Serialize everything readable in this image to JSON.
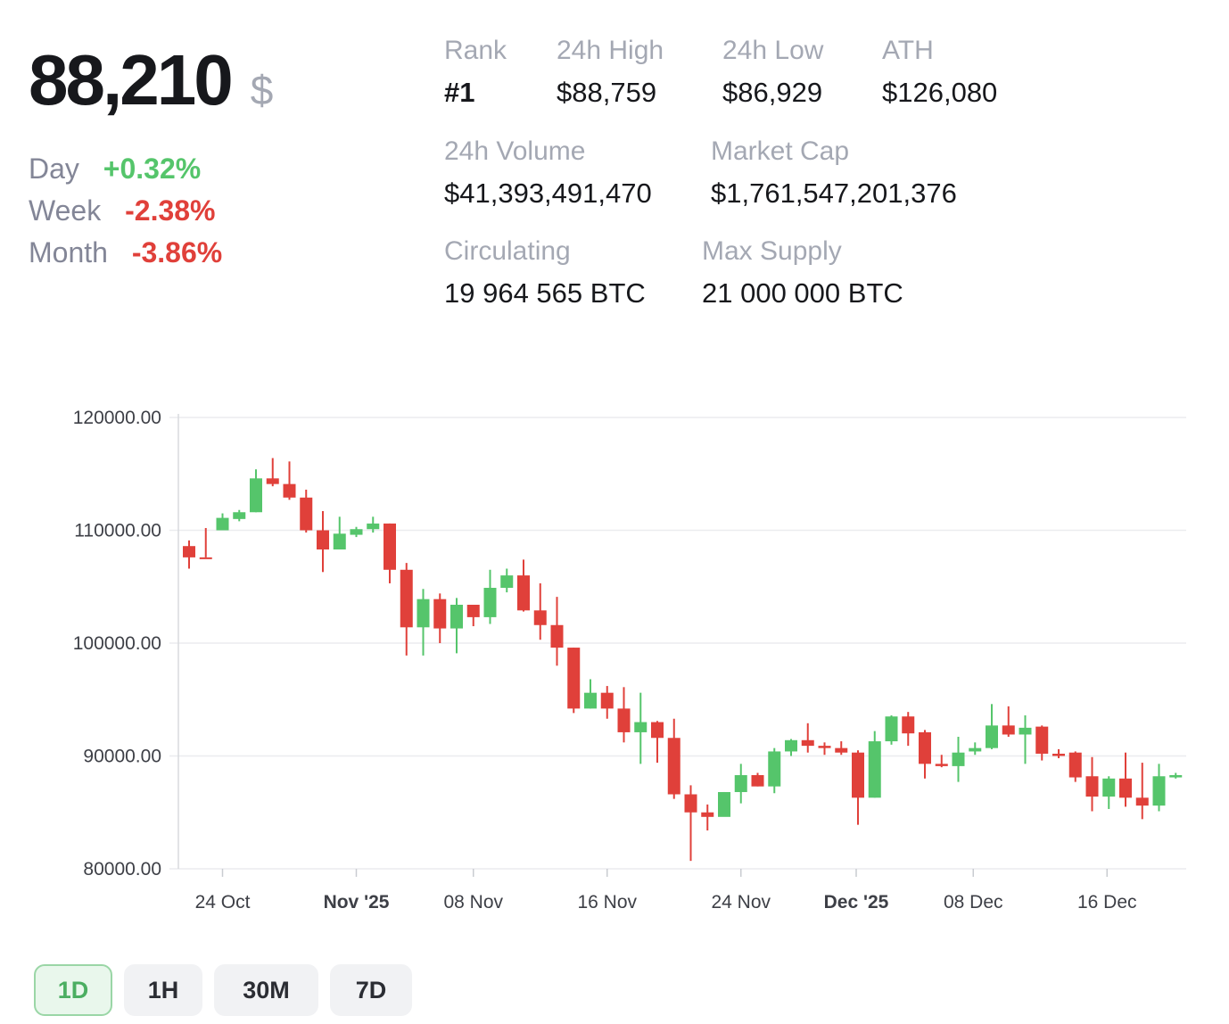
{
  "price": {
    "value": "88,210",
    "currency": "$"
  },
  "changes": [
    {
      "label": "Day",
      "value": "+0.32%",
      "dir": "pos"
    },
    {
      "label": "Week",
      "value": "-2.38%",
      "dir": "neg"
    },
    {
      "label": "Month",
      "value": "-3.86%",
      "dir": "neg"
    }
  ],
  "stats": {
    "rank": {
      "label": "Rank",
      "value": "#1"
    },
    "high24": {
      "label": "24h High",
      "value": "$88,759"
    },
    "low24": {
      "label": "24h Low",
      "value": "$86,929"
    },
    "ath": {
      "label": "ATH",
      "value": "$126,080"
    },
    "volume": {
      "label": "24h Volume",
      "value": "$41,393,491,470"
    },
    "marketcap": {
      "label": "Market Cap",
      "value": "$1,761,547,201,376"
    },
    "circulating": {
      "label": "Circulating",
      "value": "19 964 565 BTC"
    },
    "maxsupply": {
      "label": "Max Supply",
      "value": "21 000 000 BTC"
    }
  },
  "colors": {
    "up": "#55c56b",
    "down": "#e0403a",
    "grid": "#ebecef"
  },
  "tabs": [
    {
      "label": "1D",
      "active": true
    },
    {
      "label": "1H",
      "active": false
    },
    {
      "label": "30M",
      "active": false
    },
    {
      "label": "7D",
      "active": false
    }
  ],
  "chart_data": {
    "type": "candlestick",
    "ylim": [
      80000,
      120000
    ],
    "yticks": [
      "120000.00",
      "110000.00",
      "100000.00",
      "90000.00",
      "80000.00"
    ],
    "xticks": [
      {
        "label": "24 Oct",
        "index": 2,
        "bold": false
      },
      {
        "label": "Nov '25",
        "index": 10,
        "bold": true
      },
      {
        "label": "08 Nov",
        "index": 17,
        "bold": false
      },
      {
        "label": "16 Nov",
        "index": 25,
        "bold": false
      },
      {
        "label": "24 Nov",
        "index": 33,
        "bold": false
      },
      {
        "label": "Dec '25",
        "index": 40,
        "bold": true
      },
      {
        "label": "08 Dec",
        "index": 47,
        "bold": false
      },
      {
        "label": "16 Dec",
        "index": 55,
        "bold": false
      }
    ],
    "candles": [
      [
        108600,
        109100,
        107600,
        106600
      ],
      [
        107600,
        110200,
        107500,
        107600
      ],
      [
        110000,
        111500,
        111100,
        110000
      ],
      [
        111000,
        111800,
        111600,
        110800
      ],
      [
        111600,
        115400,
        114600,
        111600
      ],
      [
        114600,
        116400,
        114100,
        113900
      ],
      [
        114100,
        116100,
        112900,
        112700
      ],
      [
        112900,
        113600,
        110000,
        109800
      ],
      [
        110000,
        111700,
        108300,
        106300
      ],
      [
        108300,
        111200,
        109700,
        108300
      ],
      [
        109600,
        110300,
        110100,
        109400
      ],
      [
        110100,
        111200,
        110600,
        109800
      ],
      [
        110600,
        110600,
        106500,
        105300
      ],
      [
        106500,
        107100,
        101400,
        98900
      ],
      [
        101400,
        104800,
        103900,
        98900
      ],
      [
        103900,
        104400,
        101300,
        100000
      ],
      [
        101300,
        104000,
        103400,
        99100
      ],
      [
        103400,
        103400,
        102300,
        101500
      ],
      [
        102300,
        106500,
        104900,
        101700
      ],
      [
        104900,
        106600,
        106000,
        104500
      ],
      [
        106000,
        107400,
        102900,
        102800
      ],
      [
        102900,
        105300,
        101600,
        100300
      ],
      [
        101600,
        104100,
        99600,
        98000
      ],
      [
        99600,
        99600,
        94200,
        93800
      ],
      [
        94200,
        96800,
        95600,
        94200
      ],
      [
        95600,
        96200,
        94200,
        93300
      ],
      [
        94200,
        96100,
        92100,
        91200
      ],
      [
        92100,
        95600,
        93000,
        89300
      ],
      [
        93000,
        93100,
        91600,
        89400
      ],
      [
        91600,
        93300,
        86600,
        86200
      ],
      [
        86600,
        87400,
        85000,
        80700
      ],
      [
        85000,
        85700,
        84600,
        83400
      ],
      [
        84600,
        86800,
        86800,
        84700
      ],
      [
        86800,
        89300,
        88300,
        85800
      ],
      [
        88300,
        88500,
        87300,
        87300
      ],
      [
        87300,
        90700,
        90400,
        86700
      ],
      [
        90400,
        91500,
        91400,
        90000
      ],
      [
        91400,
        92900,
        90900,
        90300
      ],
      [
        90900,
        91200,
        90700,
        90100
      ],
      [
        90700,
        91300,
        90300,
        90100
      ],
      [
        90300,
        90500,
        86300,
        83900
      ],
      [
        86300,
        92200,
        91300,
        86300
      ],
      [
        91300,
        93600,
        93500,
        91000
      ],
      [
        93500,
        93900,
        92000,
        90900
      ],
      [
        92100,
        92300,
        89300,
        88000
      ],
      [
        89300,
        90100,
        89100,
        89000
      ],
      [
        89100,
        91700,
        90300,
        87700
      ],
      [
        90400,
        91200,
        90700,
        90100
      ],
      [
        90700,
        94600,
        92700,
        90600
      ],
      [
        92700,
        94400,
        91900,
        91700
      ],
      [
        91900,
        93600,
        92500,
        89300
      ],
      [
        92600,
        92700,
        90200,
        89600
      ],
      [
        90200,
        90600,
        90000,
        89800
      ],
      [
        90300,
        90400,
        88100,
        87700
      ],
      [
        88200,
        89900,
        86400,
        85100
      ],
      [
        86400,
        88200,
        88000,
        85300
      ],
      [
        88000,
        90300,
        86300,
        85500
      ],
      [
        86300,
        89400,
        85600,
        84400
      ],
      [
        85600,
        89300,
        88200,
        85100
      ],
      [
        88100,
        88500,
        88300,
        88000
      ]
    ]
  }
}
